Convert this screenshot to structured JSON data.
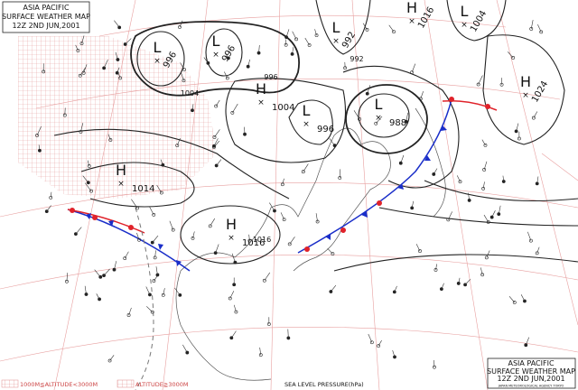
{
  "header": {
    "lines": [
      "ASIA PACIFIC",
      "SURFACE WEATHER MAP",
      "12Z   2ND JUN,2001"
    ]
  },
  "footer_box": {
    "lines": [
      "ASIA PACIFIC",
      "SURFACE WEATHER MAP",
      "12Z   2ND JUN,2001"
    ],
    "agency": "JAPAN METEOROLOGICAL AGENCY TOKYO"
  },
  "legend": {
    "low_altitude": "1000M≦ALTITUDE<3000M",
    "high_altitude": "ALTITUDE≧3000M",
    "pressure": "SEA LEVEL PRESSURE(hPa)"
  },
  "pressure_systems": [
    {
      "kind": "L",
      "value": 996
    },
    {
      "kind": "L",
      "value": 996
    },
    {
      "kind": "L",
      "value": 992
    },
    {
      "kind": "H",
      "value": 1004
    },
    {
      "kind": "L",
      "value": 996
    },
    {
      "kind": "L",
      "value": 988
    },
    {
      "kind": "H",
      "value": 1016
    },
    {
      "kind": "L",
      "value": 1004
    },
    {
      "kind": "H",
      "value": 1024
    },
    {
      "kind": "H",
      "value": 1014
    },
    {
      "kind": "H",
      "value": 1016
    }
  ],
  "isobar_labels": [
    996,
    1016,
    1004,
    992
  ]
}
